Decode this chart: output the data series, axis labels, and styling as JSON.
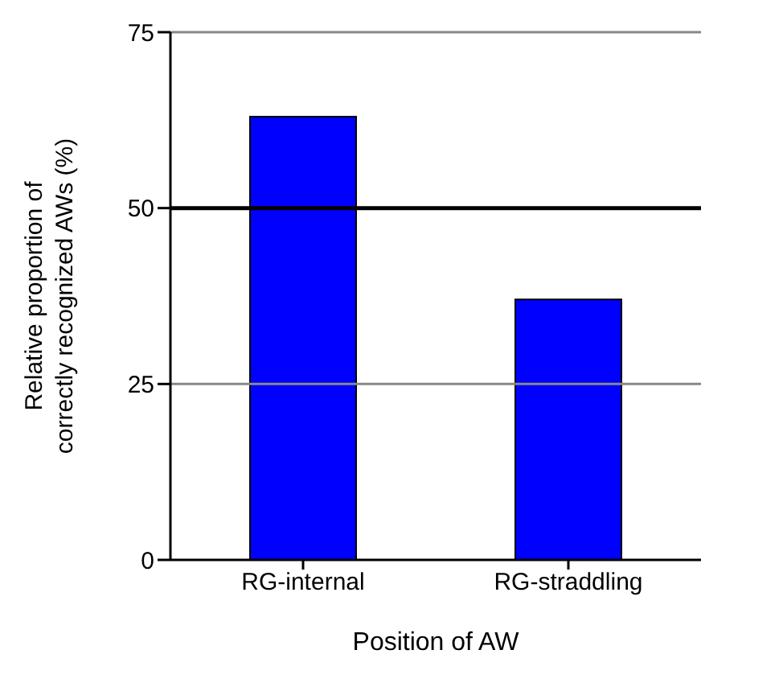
{
  "chart_data": {
    "type": "bar",
    "xlabel": "Position of AW",
    "ylabel": "Relative proportion of correctly recognized AWs (%)",
    "categories": [
      "RG-internal",
      "RG-straddling"
    ],
    "values": [
      63,
      37
    ],
    "color": "#0000ff",
    "ylim": [
      0,
      75
    ],
    "yticks": [
      0,
      25,
      50,
      75
    ],
    "ref_lines": [
      {
        "axis": "y",
        "value": 25,
        "color": "#888888"
      },
      {
        "axis": "y",
        "value": 50,
        "color": "#000000"
      },
      {
        "axis": "y",
        "value": 75,
        "color": "#888888"
      }
    ]
  }
}
